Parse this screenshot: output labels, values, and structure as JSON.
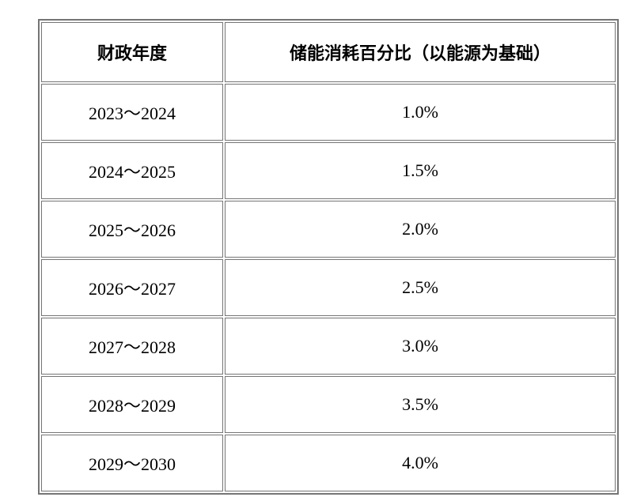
{
  "table": {
    "name": "energy-storage-consumption-table",
    "columns": [
      {
        "label": "财政年度"
      },
      {
        "label": "储能消耗百分比（以能源为基础）"
      }
    ],
    "rows": [
      {
        "year": "2023～2024",
        "percent": "1.0%"
      },
      {
        "year": "2024～2025",
        "percent": "1.5%"
      },
      {
        "year": "2025～2026",
        "percent": "2.0%"
      },
      {
        "year": "2026～2027",
        "percent": "2.5%"
      },
      {
        "year": "2027～2028",
        "percent": "3.0%"
      },
      {
        "year": "2028～2029",
        "percent": "3.5%"
      },
      {
        "year": "2029～2030",
        "percent": "4.0%"
      }
    ],
    "border_color": "#757575",
    "background_color": "#ffffff",
    "text_color": "#000000"
  }
}
